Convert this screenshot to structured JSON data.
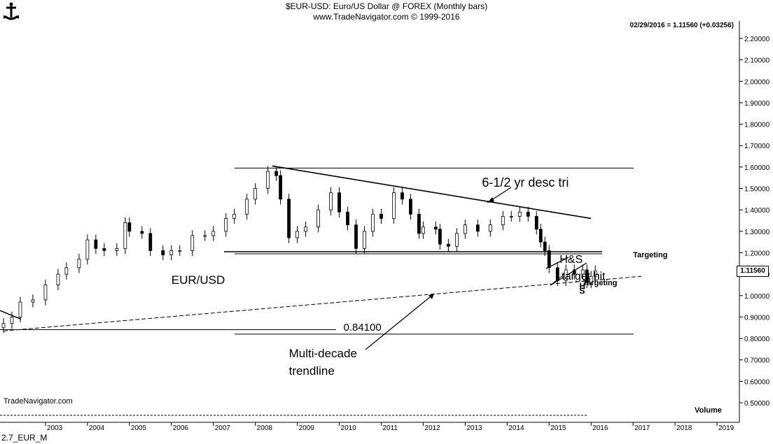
{
  "header": {
    "title": "$EUR-USD:  Euro/US Dollar @ FOREX  (Monthly bars)",
    "source": "www.TradeNavigator.com © 1999-2016",
    "quote": "02/29/2016 = 1.11560 (+0.03256)"
  },
  "watermark": "TradeNavigator.com",
  "volume_label": "Volume",
  "footer": "2.7_EUR_M",
  "last_price_label": "1.11560",
  "colors": {
    "background": "#ffffff",
    "ink": "#000000",
    "candle_up": "#ffffff",
    "candle_down": "#000000"
  },
  "chart_data": {
    "type": "candlestick",
    "symbol": "EUR/USD",
    "title": "$EUR-USD:  Euro/US Dollar @ FOREX  (Monthly bars)",
    "x_tick_labels": [
      "2003",
      "2004",
      "2005",
      "2006",
      "2007",
      "2008",
      "2009",
      "2010",
      "2011",
      "2012",
      "2013",
      "2014",
      "2015",
      "2016",
      "2017",
      "2018",
      "2019"
    ],
    "y_tick_labels": [
      "0.50000",
      "0.60000",
      "0.70000",
      "0.80000",
      "0.90000",
      "1.00000",
      "1.10000",
      "1.20000",
      "1.30000",
      "1.40000",
      "1.50000",
      "1.60000",
      "1.70000",
      "1.80000",
      "1.90000",
      "2.00000",
      "2.10000",
      "2.20000"
    ],
    "ylim": [
      0.45,
      2.25
    ],
    "xlim": [
      2002.0,
      2019.7
    ],
    "series_close": [
      [
        2002.0,
        0.87
      ],
      [
        2002.2,
        0.9
      ],
      [
        2002.4,
        0.97
      ],
      [
        2002.7,
        0.98
      ],
      [
        2003.0,
        1.05
      ],
      [
        2003.3,
        1.1
      ],
      [
        2003.5,
        1.13
      ],
      [
        2003.8,
        1.17
      ],
      [
        2004.0,
        1.26
      ],
      [
        2004.2,
        1.22
      ],
      [
        2004.4,
        1.21
      ],
      [
        2004.7,
        1.22
      ],
      [
        2004.9,
        1.34
      ],
      [
        2005.0,
        1.3
      ],
      [
        2005.3,
        1.29
      ],
      [
        2005.5,
        1.21
      ],
      [
        2005.8,
        1.19
      ],
      [
        2006.0,
        1.21
      ],
      [
        2006.2,
        1.21
      ],
      [
        2006.5,
        1.28
      ],
      [
        2006.8,
        1.28
      ],
      [
        2007.0,
        1.3
      ],
      [
        2007.3,
        1.36
      ],
      [
        2007.5,
        1.38
      ],
      [
        2007.8,
        1.45
      ],
      [
        2008.0,
        1.5
      ],
      [
        2008.3,
        1.58
      ],
      [
        2008.5,
        1.56
      ],
      [
        2008.6,
        1.45
      ],
      [
        2008.8,
        1.27
      ],
      [
        2009.0,
        1.3
      ],
      [
        2009.2,
        1.32
      ],
      [
        2009.5,
        1.4
      ],
      [
        2009.8,
        1.48
      ],
      [
        2010.0,
        1.39
      ],
      [
        2010.2,
        1.33
      ],
      [
        2010.4,
        1.22
      ],
      [
        2010.6,
        1.3
      ],
      [
        2010.8,
        1.38
      ],
      [
        2011.0,
        1.36
      ],
      [
        2011.3,
        1.48
      ],
      [
        2011.5,
        1.45
      ],
      [
        2011.7,
        1.38
      ],
      [
        2011.9,
        1.29
      ],
      [
        2012.0,
        1.32
      ],
      [
        2012.3,
        1.31
      ],
      [
        2012.4,
        1.24
      ],
      [
        2012.6,
        1.23
      ],
      [
        2012.8,
        1.29
      ],
      [
        2013.0,
        1.33
      ],
      [
        2013.3,
        1.3
      ],
      [
        2013.6,
        1.33
      ],
      [
        2013.9,
        1.37
      ],
      [
        2014.1,
        1.37
      ],
      [
        2014.3,
        1.39
      ],
      [
        2014.5,
        1.37
      ],
      [
        2014.7,
        1.31
      ],
      [
        2014.8,
        1.25
      ],
      [
        2014.9,
        1.21
      ],
      [
        2015.0,
        1.13
      ],
      [
        2015.2,
        1.07
      ],
      [
        2015.4,
        1.12
      ],
      [
        2015.6,
        1.1
      ],
      [
        2015.8,
        1.12
      ],
      [
        2015.9,
        1.06
      ],
      [
        2016.0,
        1.09
      ],
      [
        2016.1,
        1.1156
      ]
    ],
    "horizontal_lines": [
      1.595,
      1.205,
      1.195,
      0.841,
      0.82
    ],
    "desc_trendline": [
      [
        2008.4,
        1.605
      ],
      [
        2016.0,
        1.36
      ]
    ],
    "multi_decade_trendline": [
      [
        2002.0,
        0.835
      ],
      [
        2017.2,
        1.09
      ]
    ],
    "annotations": [
      {
        "text": "6-1/2 yr desc tri",
        "x": 2013.4,
        "y": 1.525
      },
      {
        "text": "EUR/USD",
        "x": 2006.0,
        "y": 1.07
      },
      {
        "text": "0.84100",
        "x": 2010.1,
        "y": 0.848
      },
      {
        "text": "Multi-decade",
        "x": 2008.8,
        "y": 0.727
      },
      {
        "text": "trendline",
        "x": 2008.8,
        "y": 0.647
      },
      {
        "text": "Targeting",
        "x": 2017.0,
        "y": 1.185
      },
      {
        "text": "H&S",
        "x": 2015.25,
        "y": 1.165
      },
      {
        "text": "target hit",
        "x": 2015.3,
        "y": 1.085
      },
      {
        "text": "Targeting",
        "x": 2015.8,
        "y": 1.055
      },
      {
        "text": "H",
        "x": 2015.72,
        "y": 1.045
      },
      {
        "text": "S",
        "x": 2015.72,
        "y": 1.02
      }
    ]
  }
}
